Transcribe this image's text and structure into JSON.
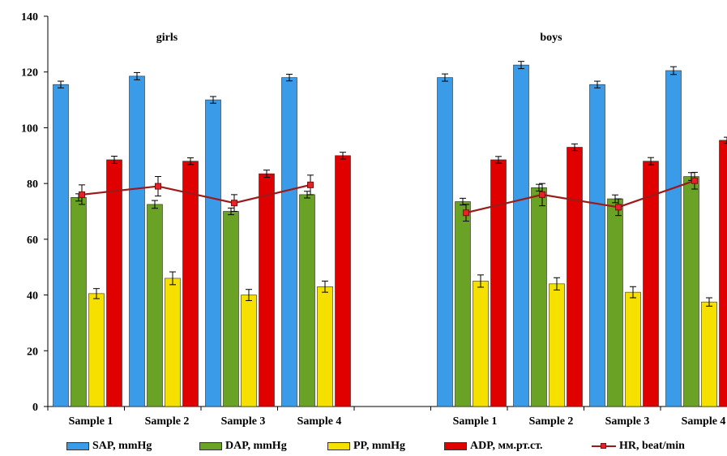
{
  "chart_data": {
    "type": "bar",
    "title": "",
    "xlabel": "",
    "ylabel": "",
    "ylim": [
      0,
      140
    ],
    "yticks": [
      "0",
      "20",
      "40",
      "60",
      "80",
      "100",
      "120",
      "140"
    ],
    "grid": false,
    "legend_position": "bottom",
    "groups": [
      {
        "label": "girls",
        "categories": [
          "Sample 1",
          "Sample 2",
          "Sample 3",
          "Sample 4"
        ]
      },
      {
        "label": "boys",
        "categories": [
          "Sample 1",
          "Sample 2",
          "Sample 3",
          "Sample 4"
        ]
      }
    ],
    "series": [
      {
        "name": "SAP, mmHg",
        "color": "#3a9be8",
        "values": [
          115.5,
          118.5,
          110,
          118,
          118,
          122.5,
          115.5,
          120.5
        ],
        "errors": [
          1.2,
          1.3,
          1.2,
          1.2,
          1.3,
          1.3,
          1.2,
          1.4
        ]
      },
      {
        "name": "DAP, mmHg",
        "color": "#6aa225",
        "values": [
          75,
          72.5,
          70,
          76,
          73.5,
          78.5,
          74.5,
          82.5
        ],
        "errors": [
          1.3,
          1.4,
          1.2,
          1.2,
          1.2,
          1.2,
          1.4,
          1.4
        ]
      },
      {
        "name": "PP, mmHg",
        "color": "#f6e000",
        "values": [
          40.5,
          46,
          40,
          43,
          45,
          44,
          41,
          37.5
        ],
        "errors": [
          1.8,
          2.3,
          2.0,
          2.0,
          2.2,
          2.2,
          2.0,
          1.5
        ]
      },
      {
        "name": "ADP, мм.рт.ст.",
        "color": "#e00000",
        "values": [
          88.5,
          88,
          83.5,
          90,
          88.5,
          93,
          88,
          95.5
        ],
        "errors": [
          1.3,
          1.2,
          1.3,
          1.2,
          1.2,
          1.2,
          1.3,
          1.1
        ]
      }
    ],
    "line_series": {
      "name": "HR, beat/min",
      "color": "#9b1b1b",
      "marker_color": "#e8202a",
      "values": [
        76,
        79,
        73,
        79.5,
        69.5,
        76,
        71.5,
        81
      ],
      "errors": [
        3.5,
        3.5,
        3,
        3.5,
        3,
        4,
        3,
        3
      ]
    }
  }
}
